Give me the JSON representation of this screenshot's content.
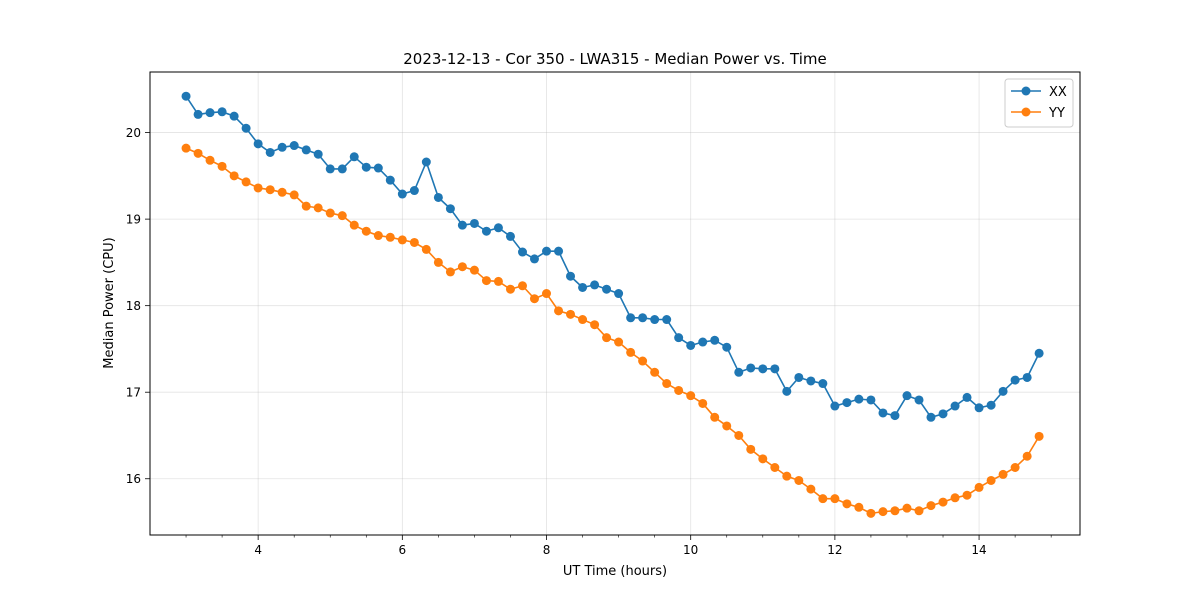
{
  "chart_data": {
    "type": "line",
    "title": "2023-12-13 - Cor 350 - LWA315 - Median Power vs. Time",
    "xlabel": "UT Time (hours)",
    "ylabel": "Median Power (CPU)",
    "xlim": [
      2.5,
      15.4
    ],
    "ylim": [
      15.35,
      20.7
    ],
    "xticks": [
      4,
      6,
      8,
      10,
      12,
      14
    ],
    "xtick_labels": [
      "4",
      "6",
      "8",
      "10",
      "12",
      "14"
    ],
    "yticks": [
      16,
      17,
      18,
      19,
      20
    ],
    "ytick_labels": [
      "16",
      "17",
      "18",
      "19",
      "20"
    ],
    "grid": true,
    "legend_position": "top-right",
    "x": [
      3.0,
      3.167,
      3.333,
      3.5,
      3.667,
      3.833,
      4.0,
      4.167,
      4.333,
      4.5,
      4.667,
      4.833,
      5.0,
      5.167,
      5.333,
      5.5,
      5.667,
      5.833,
      6.0,
      6.167,
      6.333,
      6.5,
      6.667,
      6.833,
      7.0,
      7.167,
      7.333,
      7.5,
      7.667,
      7.833,
      8.0,
      8.167,
      8.333,
      8.5,
      8.667,
      8.833,
      9.0,
      9.167,
      9.333,
      9.5,
      9.667,
      9.833,
      10.0,
      10.167,
      10.333,
      10.5,
      10.667,
      10.833,
      11.0,
      11.167,
      11.333,
      11.5,
      11.667,
      11.833,
      12.0,
      12.167,
      12.333,
      12.5,
      12.667,
      12.833,
      13.0,
      13.167,
      13.333,
      13.5,
      13.667,
      13.833,
      14.0,
      14.167,
      14.333,
      14.5,
      14.667,
      14.833
    ],
    "series": [
      {
        "name": "XX",
        "color": "#1f77b4",
        "values": [
          20.42,
          20.21,
          20.23,
          20.24,
          20.19,
          20.05,
          19.87,
          19.77,
          19.83,
          19.85,
          19.8,
          19.75,
          19.58,
          19.58,
          19.72,
          19.6,
          19.59,
          19.45,
          19.29,
          19.33,
          19.66,
          19.25,
          19.12,
          18.93,
          18.95,
          18.86,
          18.9,
          18.8,
          18.62,
          18.54,
          18.63,
          18.63,
          18.34,
          18.21,
          18.24,
          18.19,
          18.14,
          17.86,
          17.86,
          17.84,
          17.84,
          17.63,
          17.54,
          17.58,
          17.6,
          17.52,
          17.23,
          17.28,
          17.27,
          17.27,
          17.01,
          17.17,
          17.13,
          17.1,
          16.84,
          16.88,
          16.92,
          16.91,
          16.76,
          16.73,
          16.96,
          16.91,
          16.71,
          16.75,
          16.84,
          16.94,
          16.82,
          16.85,
          17.01,
          17.14,
          17.17,
          17.45
        ]
      },
      {
        "name": "YY",
        "color": "#ff7f0e",
        "values": [
          19.82,
          19.76,
          19.68,
          19.61,
          19.5,
          19.43,
          19.36,
          19.34,
          19.31,
          19.28,
          19.15,
          19.13,
          19.07,
          19.04,
          18.93,
          18.86,
          18.81,
          18.79,
          18.76,
          18.73,
          18.65,
          18.5,
          18.39,
          18.45,
          18.41,
          18.29,
          18.28,
          18.19,
          18.23,
          18.08,
          18.14,
          17.94,
          17.9,
          17.84,
          17.78,
          17.63,
          17.58,
          17.46,
          17.36,
          17.23,
          17.1,
          17.02,
          16.96,
          16.87,
          16.71,
          16.61,
          16.5,
          16.34,
          16.23,
          16.13,
          16.03,
          15.98,
          15.88,
          15.77,
          15.77,
          15.71,
          15.67,
          15.6,
          15.62,
          15.63,
          15.66,
          15.63,
          15.69,
          15.73,
          15.78,
          15.81,
          15.9,
          15.98,
          16.05,
          16.13,
          16.26,
          16.49
        ]
      }
    ]
  }
}
